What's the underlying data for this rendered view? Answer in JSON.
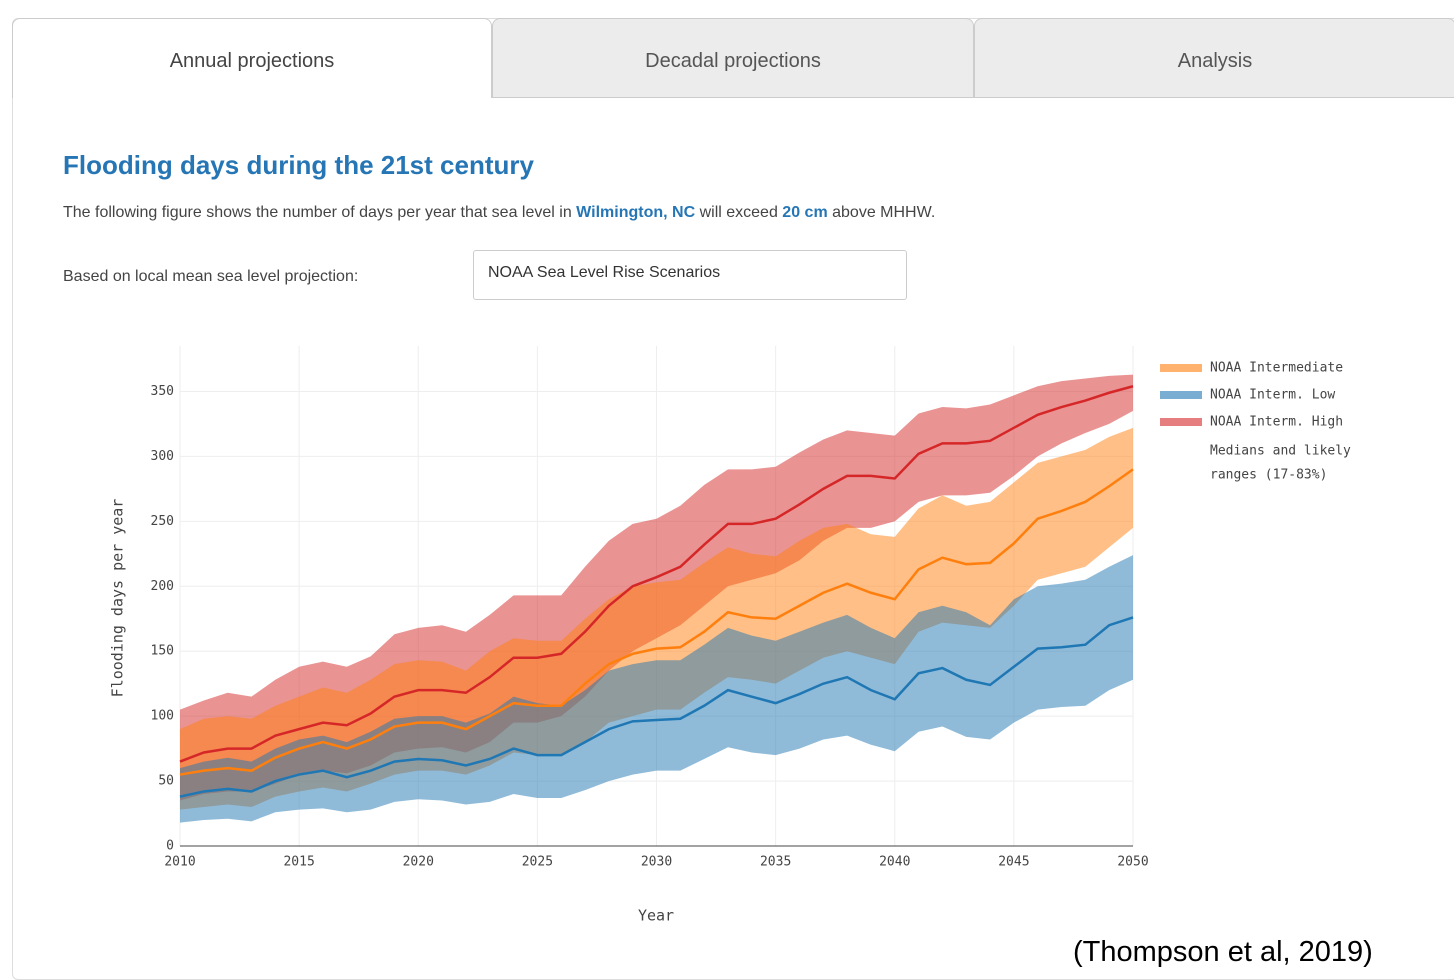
{
  "tabs": [
    "Annual projections",
    "Decadal projections",
    "Analysis"
  ],
  "heading": "Flooding days during the 21st century",
  "description": [
    "The following figure shows the number of days per year that sea level in",
    "Wilmington, NC",
    "will exceed",
    "20 cm",
    "above MHHW."
  ],
  "projection_label": "Based on local mean sea level projection:",
  "projection_value": "NOAA Sea Level Rise Scenarios",
  "caption": "(Thompson et al, 2019)",
  "chart_data": {
    "type": "band",
    "xlabel": "Year",
    "ylabel": "Flooding days per year",
    "x": [
      2010,
      2011,
      2012,
      2013,
      2014,
      2015,
      2016,
      2017,
      2018,
      2019,
      2020,
      2021,
      2022,
      2023,
      2024,
      2025,
      2026,
      2027,
      2028,
      2029,
      2030,
      2031,
      2032,
      2033,
      2034,
      2035,
      2036,
      2037,
      2038,
      2039,
      2040,
      2041,
      2042,
      2043,
      2044,
      2045,
      2046,
      2047,
      2048,
      2049,
      2050
    ],
    "xlim": [
      2010,
      2050
    ],
    "xticks": [
      2010,
      2015,
      2020,
      2025,
      2030,
      2035,
      2040,
      2045,
      2050
    ],
    "ylim": [
      0,
      385
    ],
    "yticks": [
      0,
      50,
      100,
      150,
      200,
      250,
      300,
      350
    ],
    "grid": true,
    "legend_note": [
      "Medians and likely",
      "ranges (17-83%)"
    ],
    "series": [
      {
        "name": "NOAA Intermediate",
        "color": "#ff7f0e",
        "values": [
          55,
          58,
          60,
          58,
          68,
          75,
          80,
          75,
          82,
          92,
          95,
          95,
          90,
          100,
          110,
          108,
          108,
          125,
          140,
          148,
          152,
          153,
          165,
          180,
          176,
          175,
          185,
          195,
          202,
          195,
          190,
          213,
          222,
          217,
          218,
          233,
          252,
          258,
          265,
          277,
          290
        ],
        "upper": [
          90,
          98,
          100,
          98,
          108,
          115,
          122,
          118,
          128,
          140,
          143,
          142,
          135,
          150,
          160,
          158,
          158,
          175,
          190,
          200,
          203,
          205,
          218,
          230,
          225,
          223,
          235,
          245,
          248,
          240,
          238,
          260,
          270,
          262,
          265,
          280,
          295,
          300,
          305,
          315,
          322
        ],
        "lower": [
          28,
          30,
          32,
          30,
          38,
          42,
          45,
          42,
          48,
          55,
          58,
          58,
          55,
          62,
          72,
          70,
          70,
          80,
          95,
          100,
          105,
          105,
          118,
          130,
          128,
          125,
          135,
          145,
          150,
          145,
          140,
          165,
          172,
          170,
          168,
          185,
          205,
          210,
          215,
          230,
          245
        ]
      },
      {
        "name": "NOAA Interm. Low",
        "color": "#1f77b4",
        "values": [
          38,
          42,
          44,
          42,
          50,
          55,
          58,
          53,
          58,
          65,
          67,
          66,
          62,
          67,
          75,
          70,
          70,
          80,
          90,
          96,
          97,
          98,
          108,
          120,
          115,
          110,
          117,
          125,
          130,
          120,
          113,
          133,
          137,
          128,
          124,
          138,
          152,
          153,
          155,
          170,
          176
        ],
        "upper": [
          60,
          65,
          68,
          65,
          75,
          82,
          85,
          80,
          88,
          98,
          100,
          100,
          95,
          102,
          115,
          110,
          108,
          120,
          135,
          140,
          143,
          143,
          155,
          168,
          162,
          158,
          165,
          172,
          178,
          168,
          160,
          180,
          185,
          180,
          170,
          190,
          200,
          202,
          205,
          215,
          224
        ],
        "lower": [
          18,
          20,
          21,
          19,
          26,
          28,
          29,
          26,
          28,
          34,
          36,
          35,
          32,
          34,
          40,
          37,
          37,
          43,
          50,
          55,
          58,
          58,
          67,
          76,
          72,
          70,
          75,
          82,
          85,
          78,
          73,
          88,
          92,
          84,
          82,
          95,
          105,
          107,
          108,
          120,
          128
        ]
      },
      {
        "name": "NOAA Interm. High",
        "color": "#d62728",
        "values": [
          65,
          72,
          75,
          75,
          85,
          90,
          95,
          93,
          102,
          115,
          120,
          120,
          118,
          130,
          145,
          145,
          148,
          165,
          185,
          200,
          207,
          215,
          232,
          248,
          248,
          252,
          263,
          275,
          285,
          285,
          283,
          302,
          310,
          310,
          312,
          322,
          332,
          338,
          343,
          349,
          354
        ],
        "upper": [
          105,
          112,
          118,
          115,
          128,
          138,
          142,
          138,
          146,
          163,
          168,
          170,
          165,
          178,
          193,
          193,
          193,
          215,
          235,
          248,
          252,
          262,
          278,
          290,
          290,
          292,
          303,
          313,
          320,
          318,
          316,
          333,
          338,
          337,
          340,
          347,
          354,
          358,
          360,
          362,
          363
        ],
        "lower": [
          35,
          40,
          42,
          42,
          48,
          55,
          58,
          56,
          62,
          72,
          75,
          76,
          72,
          80,
          95,
          95,
          100,
          115,
          135,
          150,
          160,
          170,
          185,
          200,
          205,
          210,
          220,
          235,
          245,
          245,
          250,
          265,
          270,
          270,
          272,
          285,
          300,
          310,
          318,
          325,
          335
        ]
      }
    ]
  }
}
